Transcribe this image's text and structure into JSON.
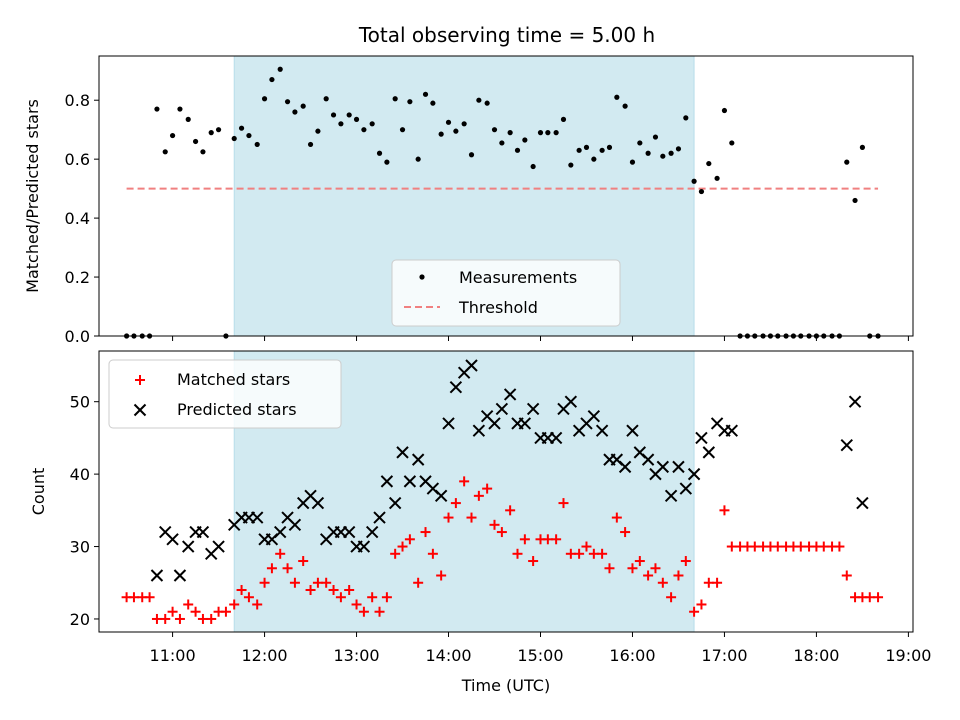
{
  "figure": {
    "title": "Total observing time = 5.00 h"
  },
  "chart_data": [
    {
      "type": "scatter",
      "panel": "top",
      "xlabel": "",
      "ylabel": "Matched/Predicted stars",
      "xlim": [
        10.2,
        19.05
      ],
      "ylim": [
        0.0,
        0.95
      ],
      "yticks": [
        0.0,
        0.2,
        0.4,
        0.6,
        0.8
      ],
      "ytick_labels": [
        "0.0",
        "0.2",
        "0.4",
        "0.6",
        "0.8"
      ],
      "grid": false,
      "legend": {
        "location": "lower-center",
        "entries": [
          "Measurements",
          "Threshold"
        ]
      },
      "shaded_span": {
        "x_start": 11.67,
        "x_end": 16.67,
        "color": "#add8e6"
      },
      "threshold": {
        "name": "Threshold",
        "y": 0.5,
        "x_start": 10.5,
        "x_end": 18.67,
        "color": "#f08080"
      },
      "series": [
        {
          "name": "Measurements",
          "color": "#000000",
          "marker": "dot",
          "x": [
            10.5,
            10.58,
            10.67,
            10.75,
            10.83,
            10.92,
            11.0,
            11.08,
            11.17,
            11.25,
            11.33,
            11.42,
            11.5,
            11.58,
            11.67,
            11.75,
            11.83,
            11.92,
            12.0,
            12.08,
            12.17,
            12.25,
            12.33,
            12.42,
            12.5,
            12.58,
            12.67,
            12.75,
            12.83,
            12.92,
            13.0,
            13.08,
            13.17,
            13.25,
            13.33,
            13.42,
            13.5,
            13.58,
            13.67,
            13.75,
            13.83,
            13.92,
            14.0,
            14.08,
            14.17,
            14.25,
            14.33,
            14.42,
            14.5,
            14.58,
            14.67,
            14.75,
            14.83,
            14.92,
            15.0,
            15.08,
            15.17,
            15.25,
            15.33,
            15.42,
            15.5,
            15.58,
            15.67,
            15.75,
            15.83,
            15.92,
            16.0,
            16.08,
            16.17,
            16.25,
            16.33,
            16.42,
            16.5,
            16.58,
            16.67,
            16.75,
            16.83,
            16.92,
            17.0,
            17.08,
            17.17,
            17.25,
            17.33,
            17.42,
            17.5,
            17.58,
            17.67,
            17.75,
            17.83,
            17.92,
            18.0,
            18.08,
            18.17,
            18.25,
            18.33,
            18.42,
            18.5,
            18.58,
            18.67
          ],
          "y": [
            0.0,
            0.0,
            0.0,
            0.0,
            0.77,
            0.625,
            0.68,
            0.77,
            0.735,
            0.66,
            0.625,
            0.69,
            0.7,
            0.0,
            0.67,
            0.705,
            0.68,
            0.65,
            0.805,
            0.87,
            0.905,
            0.795,
            0.76,
            0.78,
            0.65,
            0.695,
            0.805,
            0.75,
            0.72,
            0.75,
            0.735,
            0.7,
            0.72,
            0.62,
            0.59,
            0.805,
            0.7,
            0.795,
            0.6,
            0.82,
            0.79,
            0.685,
            0.725,
            0.695,
            0.72,
            0.615,
            0.8,
            0.79,
            0.7,
            0.655,
            0.69,
            0.63,
            0.665,
            0.575,
            0.69,
            0.69,
            0.69,
            0.735,
            0.58,
            0.63,
            0.64,
            0.6,
            0.63,
            0.64,
            0.81,
            0.78,
            0.59,
            0.655,
            0.62,
            0.675,
            0.61,
            0.62,
            0.635,
            0.74,
            0.525,
            0.49,
            0.585,
            0.535,
            0.765,
            0.655,
            0.0,
            0.0,
            0.0,
            0.0,
            0.0,
            0.0,
            0.0,
            0.0,
            0.0,
            0.0,
            0.0,
            0.0,
            0.0,
            0.0,
            0.59,
            0.46,
            0.64,
            0.0,
            0.0
          ]
        }
      ]
    },
    {
      "type": "scatter",
      "panel": "bottom",
      "xlabel": "Time (UTC)",
      "ylabel": "Count",
      "xlim": [
        10.2,
        19.05
      ],
      "ylim": [
        18.2,
        57.0
      ],
      "yticks": [
        20,
        30,
        40,
        50
      ],
      "ytick_labels": [
        "20",
        "30",
        "40",
        "50"
      ],
      "xticks": [
        11,
        12,
        13,
        14,
        15,
        16,
        17,
        18,
        19
      ],
      "xtick_labels": [
        "11:00",
        "12:00",
        "13:00",
        "14:00",
        "15:00",
        "16:00",
        "17:00",
        "18:00",
        "19:00"
      ],
      "grid": false,
      "legend": {
        "location": "upper-left",
        "entries": [
          "Matched stars",
          "Predicted stars"
        ]
      },
      "shaded_span": {
        "x_start": 11.67,
        "x_end": 16.67,
        "color": "#add8e6"
      },
      "series": [
        {
          "name": "Matched stars",
          "color": "#ff0000",
          "marker": "plus",
          "x": [
            10.5,
            10.58,
            10.67,
            10.75,
            10.83,
            10.92,
            11.0,
            11.08,
            11.17,
            11.25,
            11.33,
            11.42,
            11.5,
            11.58,
            11.67,
            11.75,
            11.83,
            11.92,
            12.0,
            12.08,
            12.17,
            12.25,
            12.33,
            12.42,
            12.5,
            12.58,
            12.67,
            12.75,
            12.83,
            12.92,
            13.0,
            13.08,
            13.17,
            13.25,
            13.33,
            13.42,
            13.5,
            13.58,
            13.67,
            13.75,
            13.83,
            13.92,
            14.0,
            14.08,
            14.17,
            14.25,
            14.33,
            14.42,
            14.5,
            14.58,
            14.67,
            14.75,
            14.83,
            14.92,
            15.0,
            15.08,
            15.17,
            15.25,
            15.33,
            15.42,
            15.5,
            15.58,
            15.67,
            15.75,
            15.83,
            15.92,
            16.0,
            16.08,
            16.17,
            16.25,
            16.33,
            16.42,
            16.5,
            16.58,
            16.67,
            16.75,
            16.83,
            16.92,
            17.0,
            17.08,
            17.17,
            17.25,
            17.33,
            17.42,
            17.5,
            17.58,
            17.67,
            17.75,
            17.83,
            17.92,
            18.0,
            18.08,
            18.17,
            18.25,
            18.33,
            18.42,
            18.5,
            18.58,
            18.67
          ],
          "y": [
            23,
            23,
            23,
            23,
            20,
            20,
            21,
            20,
            22,
            21,
            20,
            20,
            21,
            21,
            22,
            24,
            23,
            22,
            25,
            27,
            29,
            27,
            25,
            28,
            24,
            25,
            25,
            24,
            23,
            24,
            22,
            21,
            23,
            21,
            23,
            29,
            30,
            31,
            25,
            32,
            29,
            26,
            34,
            36,
            39,
            34,
            37,
            38,
            33,
            32,
            35,
            29,
            31,
            28,
            31,
            31,
            31,
            36,
            29,
            29,
            30,
            29,
            29,
            27,
            34,
            32,
            27,
            28,
            26,
            27,
            25,
            23,
            26,
            28,
            21,
            22,
            25,
            25,
            35,
            30,
            30,
            30,
            30,
            30,
            30,
            30,
            30,
            30,
            30,
            30,
            30,
            30,
            30,
            30,
            26,
            23,
            23,
            23,
            23
          ]
        },
        {
          "name": "Predicted stars",
          "color": "#000000",
          "marker": "cross",
          "x": [
            10.83,
            10.92,
            11.0,
            11.08,
            11.17,
            11.25,
            11.33,
            11.42,
            11.5,
            11.67,
            11.75,
            11.83,
            11.92,
            12.0,
            12.08,
            12.17,
            12.25,
            12.33,
            12.42,
            12.5,
            12.58,
            12.67,
            12.75,
            12.83,
            12.92,
            13.0,
            13.08,
            13.17,
            13.25,
            13.33,
            13.42,
            13.5,
            13.58,
            13.67,
            13.75,
            13.83,
            13.92,
            14.0,
            14.08,
            14.17,
            14.25,
            14.33,
            14.42,
            14.5,
            14.58,
            14.67,
            14.75,
            14.83,
            14.92,
            15.0,
            15.08,
            15.17,
            15.25,
            15.33,
            15.42,
            15.5,
            15.58,
            15.67,
            15.75,
            15.83,
            15.92,
            16.0,
            16.08,
            16.17,
            16.25,
            16.33,
            16.42,
            16.5,
            16.58,
            16.67,
            16.75,
            16.83,
            16.92,
            17.0,
            17.08,
            18.33,
            18.42,
            18.5
          ],
          "y": [
            26,
            32,
            31,
            26,
            30,
            32,
            32,
            29,
            30,
            33,
            34,
            34,
            34,
            31,
            31,
            32,
            34,
            33,
            36,
            37,
            36,
            31,
            32,
            32,
            32,
            30,
            30,
            32,
            34,
            39,
            36,
            43,
            39,
            42,
            39,
            38,
            37,
            47,
            52,
            54,
            55,
            46,
            48,
            47,
            49,
            51,
            47,
            47,
            49,
            45,
            45,
            45,
            49,
            50,
            46,
            47,
            48,
            46,
            42,
            42,
            41,
            46,
            43,
            42,
            40,
            41,
            37,
            41,
            38,
            40,
            45,
            43,
            47,
            46,
            46,
            44,
            50,
            36
          ]
        }
      ]
    }
  ]
}
